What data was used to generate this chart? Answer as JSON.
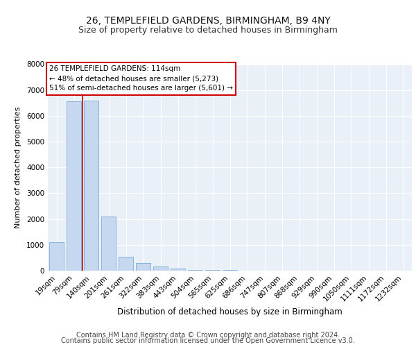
{
  "title1": "26, TEMPLEFIELD GARDENS, BIRMINGHAM, B9 4NY",
  "title2": "Size of property relative to detached houses in Birmingham",
  "xlabel": "Distribution of detached houses by size in Birmingham",
  "ylabel": "Number of detached properties",
  "categories": [
    "19sqm",
    "79sqm",
    "140sqm",
    "201sqm",
    "261sqm",
    "322sqm",
    "383sqm",
    "443sqm",
    "504sqm",
    "565sqm",
    "625sqm",
    "686sqm",
    "747sqm",
    "807sqm",
    "868sqm",
    "929sqm",
    "990sqm",
    "1050sqm",
    "1111sqm",
    "1172sqm",
    "1232sqm"
  ],
  "values": [
    1100,
    6550,
    6600,
    2100,
    550,
    290,
    150,
    75,
    40,
    25,
    15,
    5,
    2,
    1,
    1,
    0,
    0,
    0,
    0,
    0,
    0
  ],
  "bar_color": "#c5d8f0",
  "bar_edge_color": "#7baad4",
  "vline_color": "#cc0000",
  "vline_pos": 1.5,
  "annotation_text": "26 TEMPLEFIELD GARDENS: 114sqm\n← 48% of detached houses are smaller (5,273)\n51% of semi-detached houses are larger (5,601) →",
  "annotation_box_color": "#ffffff",
  "annotation_box_edge": "#cc0000",
  "ylim": [
    0,
    8000
  ],
  "yticks": [
    0,
    1000,
    2000,
    3000,
    4000,
    5000,
    6000,
    7000,
    8000
  ],
  "footer1": "Contains HM Land Registry data © Crown copyright and database right 2024.",
  "footer2": "Contains public sector information licensed under the Open Government Licence v3.0.",
  "bg_color": "#eaf0f8",
  "grid_color": "#ffffff",
  "title1_fontsize": 10,
  "title2_fontsize": 9,
  "xlabel_fontsize": 8.5,
  "ylabel_fontsize": 8,
  "tick_fontsize": 7.5,
  "footer_fontsize": 7,
  "annot_fontsize": 7.5
}
